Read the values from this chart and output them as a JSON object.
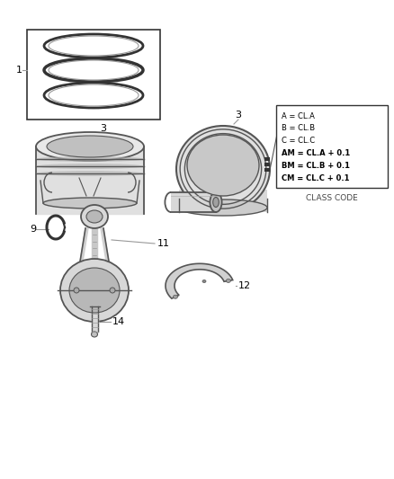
{
  "background_color": "#ffffff",
  "line_color": "#555555",
  "dark_color": "#333333",
  "light_color": "#cccccc",
  "mid_color": "#999999",
  "class_code_lines": [
    "A = CL.A",
    "B = CL.B",
    "C = CL.C",
    "AM = CL.A + 0.1",
    "BM = CL.B + 0.1",
    "CM = CL.C + 0.1"
  ],
  "class_code_label": "CLASS CODE",
  "figsize": [
    4.38,
    5.33
  ],
  "dpi": 100,
  "xlim": [
    0,
    438
  ],
  "ylim": [
    0,
    533
  ]
}
